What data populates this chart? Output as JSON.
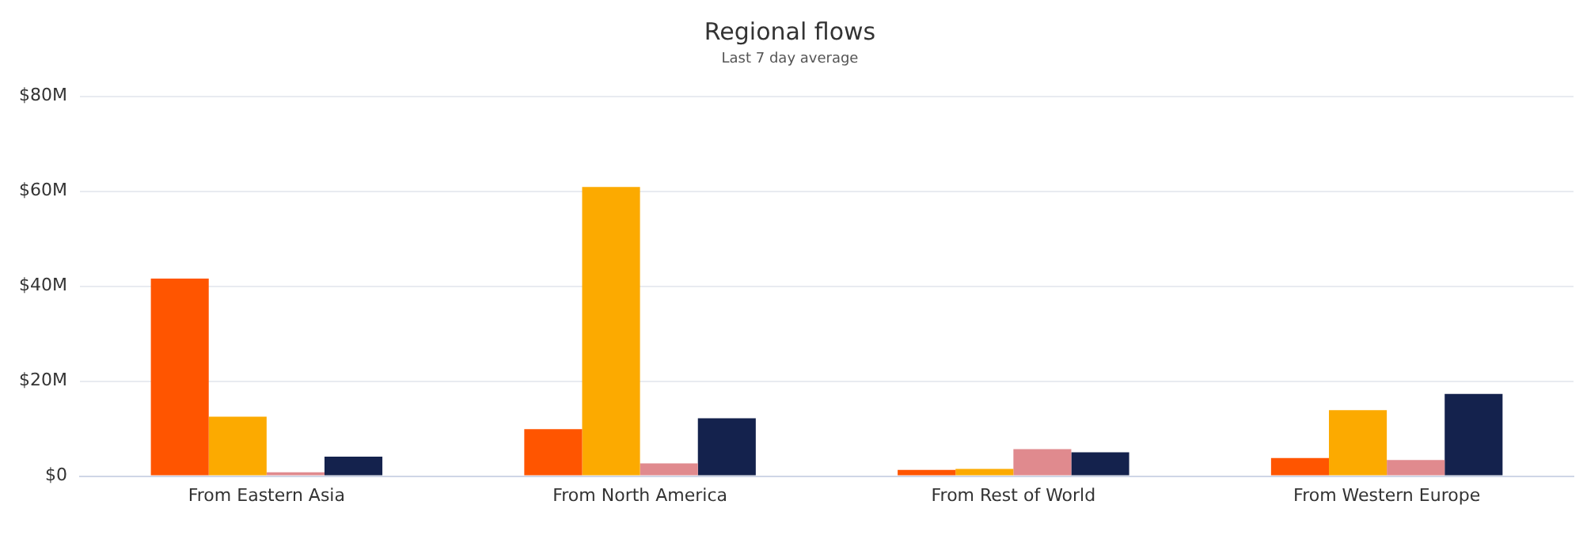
{
  "chart_data": {
    "type": "bar",
    "title": "Regional flows",
    "subtitle": "Last 7 day average",
    "categories": [
      "From Eastern Asia",
      "From North America",
      "From Rest of World",
      "From Western Europe"
    ],
    "series": [
      {
        "color": "#ff5500",
        "values": [
          41.6,
          9.9,
          1.3,
          3.8
        ]
      },
      {
        "color": "#fcaa00",
        "values": [
          12.5,
          60.9,
          1.5,
          13.9
        ]
      },
      {
        "color": "#e08a8e",
        "values": [
          0.8,
          2.7,
          5.7,
          3.4
        ]
      },
      {
        "color": "#14224d",
        "values": [
          4.1,
          12.2,
          5.0,
          17.3
        ]
      }
    ],
    "ylim": [
      0,
      80
    ],
    "yticks": [
      {
        "value": 0,
        "label": "$0"
      },
      {
        "value": 20,
        "label": "$20M"
      },
      {
        "value": 40,
        "label": "$40M"
      },
      {
        "value": 60,
        "label": "$60M"
      },
      {
        "value": 80,
        "label": "$80M"
      }
    ],
    "grid": "y",
    "legend": false
  }
}
